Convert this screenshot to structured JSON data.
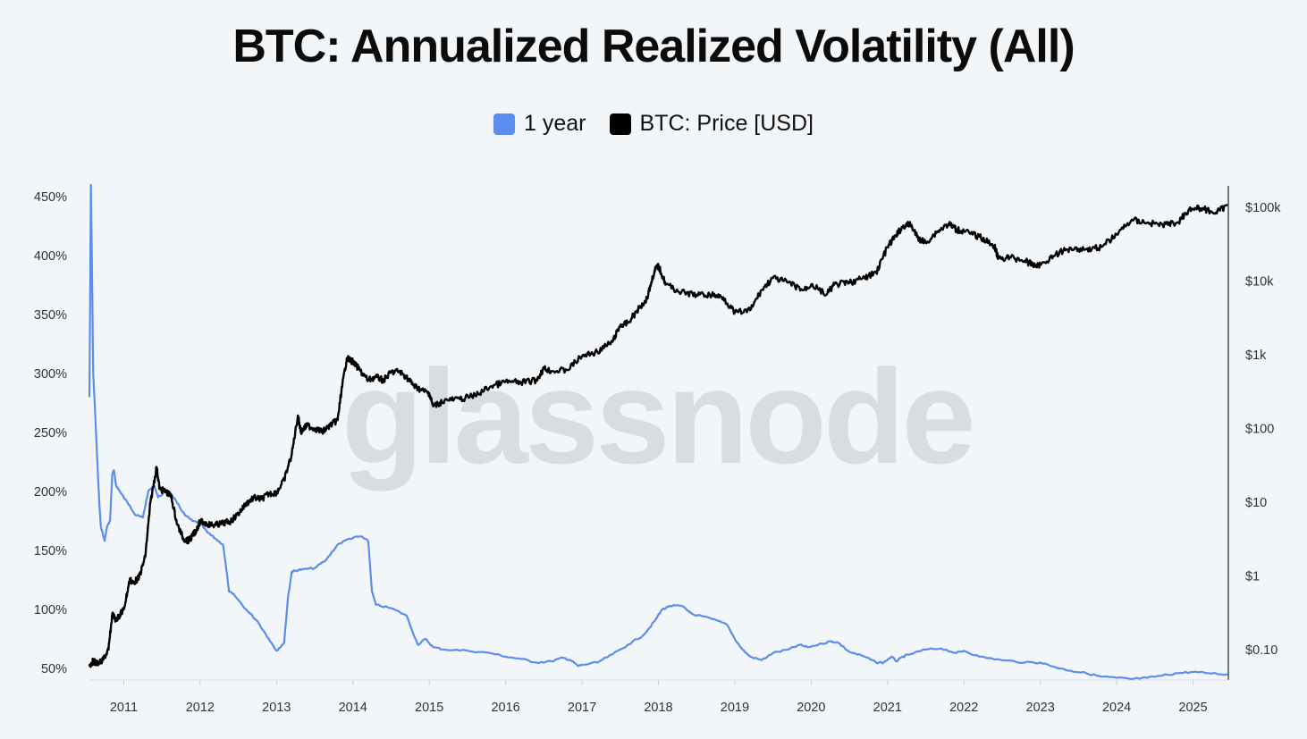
{
  "title": "BTC: Annualized Realized Volatility (All)",
  "legend": [
    {
      "label": "1 year",
      "color": "#5b8def"
    },
    {
      "label": "BTC: Price [USD]",
      "color": "#000000"
    }
  ],
  "watermark": "glassnode",
  "chart_data": {
    "type": "line",
    "title": "BTC: Annualized Realized Volatility (All)",
    "x_ticks": [
      "2011",
      "2012",
      "2013",
      "2014",
      "2015",
      "2016",
      "2017",
      "2018",
      "2019",
      "2020",
      "2021",
      "2022",
      "2023",
      "2024",
      "2025"
    ],
    "xlim": [
      2010.55,
      2025.45
    ],
    "y_left": {
      "ticks": [
        "450%",
        "400%",
        "350%",
        "300%",
        "250%",
        "200%",
        "150%",
        "100%",
        "50%"
      ],
      "range": [
        50,
        450
      ],
      "unit": "%"
    },
    "y_right": {
      "ticks": [
        "$100k",
        "$10k",
        "$1k",
        "$100",
        "$10",
        "$1",
        "$0.10"
      ],
      "scale": "log",
      "range": [
        0.05,
        150000
      ]
    },
    "grid": false,
    "legend_position": "top-center",
    "series": [
      {
        "name": "1 year",
        "axis": "left",
        "color": "#5b8def",
        "x": [
          2010.55,
          2010.57,
          2010.6,
          2010.63,
          2010.65,
          2010.68,
          2010.7,
          2010.75,
          2010.78,
          2010.82,
          2010.85,
          2010.87,
          2010.9,
          2010.95,
          2011.0,
          2011.08,
          2011.15,
          2011.25,
          2011.32,
          2011.4,
          2011.45,
          2011.55,
          2011.62,
          2011.7,
          2011.8,
          2011.9,
          2012.0,
          2012.1,
          2012.2,
          2012.3,
          2012.38,
          2012.45,
          2012.6,
          2012.75,
          2012.9,
          2013.0,
          2013.1,
          2013.15,
          2013.2,
          2013.25,
          2013.35,
          2013.5,
          2013.65,
          2013.8,
          2013.95,
          2014.1,
          2014.2,
          2014.25,
          2014.3,
          2014.5,
          2014.7,
          2014.85,
          2014.95,
          2015.05,
          2015.2,
          2015.5,
          2015.8,
          2016.0,
          2016.2,
          2016.4,
          2016.6,
          2016.75,
          2016.85,
          2016.95,
          2017.0,
          2017.2,
          2017.4,
          2017.6,
          2017.8,
          2017.95,
          2018.05,
          2018.15,
          2018.3,
          2018.45,
          2018.7,
          2018.9,
          2019.0,
          2019.1,
          2019.2,
          2019.35,
          2019.5,
          2019.7,
          2019.85,
          2019.95,
          2020.15,
          2020.25,
          2020.35,
          2020.5,
          2020.7,
          2020.85,
          2020.95,
          2021.05,
          2021.12,
          2021.2,
          2021.3,
          2021.5,
          2021.7,
          2021.9,
          2022.0,
          2022.2,
          2022.5,
          2022.8,
          2023.0,
          2023.2,
          2023.4,
          2023.6,
          2023.8,
          2024.0,
          2024.2,
          2024.4,
          2024.6,
          2024.8,
          2025.0,
          2025.2,
          2025.45
        ],
        "values": [
          280,
          460,
          300,
          260,
          230,
          190,
          170,
          158,
          170,
          175,
          215,
          218,
          205,
          200,
          195,
          188,
          180,
          178,
          200,
          205,
          195,
          200,
          198,
          190,
          180,
          175,
          173,
          165,
          160,
          155,
          115,
          112,
          100,
          90,
          75,
          65,
          72,
          110,
          132,
          133,
          134,
          135,
          142,
          155,
          160,
          162,
          158,
          115,
          104,
          101,
          95,
          70,
          75,
          68,
          66,
          65,
          63,
          60,
          58,
          55,
          56,
          59,
          57,
          52,
          53,
          55,
          62,
          70,
          78,
          90,
          100,
          103,
          103,
          96,
          92,
          87,
          75,
          66,
          60,
          57,
          63,
          66,
          70,
          68,
          71,
          73,
          72,
          64,
          60,
          55,
          55,
          60,
          56,
          60,
          62,
          66,
          67,
          63,
          65,
          60,
          57,
          55,
          55,
          51,
          48,
          46,
          43,
          42,
          41,
          42,
          44,
          46,
          47,
          46,
          45
        ]
      },
      {
        "name": "BTC: Price [USD]",
        "axis": "right",
        "color": "#000000",
        "x": [
          2010.55,
          2010.6,
          2010.65,
          2010.72,
          2010.8,
          2010.85,
          2010.9,
          2010.95,
          2011.0,
          2011.08,
          2011.12,
          2011.2,
          2011.28,
          2011.35,
          2011.43,
          2011.47,
          2011.55,
          2011.62,
          2011.7,
          2011.78,
          2011.85,
          2011.9,
          2011.95,
          2012.0,
          2012.1,
          2012.2,
          2012.3,
          2012.4,
          2012.5,
          2012.6,
          2012.7,
          2012.8,
          2012.9,
          2013.0,
          2013.1,
          2013.2,
          2013.28,
          2013.32,
          2013.4,
          2013.5,
          2013.6,
          2013.7,
          2013.8,
          2013.85,
          2013.92,
          2014.0,
          2014.1,
          2014.2,
          2014.3,
          2014.4,
          2014.5,
          2014.6,
          2014.7,
          2014.8,
          2014.9,
          2015.0,
          2015.05,
          2015.2,
          2015.4,
          2015.6,
          2015.8,
          2016.0,
          2016.2,
          2016.4,
          2016.5,
          2016.6,
          2016.8,
          2017.0,
          2017.2,
          2017.4,
          2017.5,
          2017.6,
          2017.75,
          2017.85,
          2017.95,
          2018.0,
          2018.1,
          2018.3,
          2018.5,
          2018.7,
          2018.85,
          2019.0,
          2019.2,
          2019.35,
          2019.5,
          2019.7,
          2019.9,
          2020.0,
          2020.2,
          2020.3,
          2020.5,
          2020.7,
          2020.85,
          2021.0,
          2021.1,
          2021.2,
          2021.3,
          2021.4,
          2021.5,
          2021.65,
          2021.8,
          2021.9,
          2022.0,
          2022.2,
          2022.4,
          2022.45,
          2022.6,
          2022.8,
          2022.9,
          2023.0,
          2023.2,
          2023.4,
          2023.6,
          2023.8,
          2024.0,
          2024.2,
          2024.4,
          2024.6,
          2024.8,
          2024.95,
          2025.1,
          2025.3,
          2025.45
        ],
        "values": [
          0.06,
          0.07,
          0.065,
          0.07,
          0.1,
          0.3,
          0.25,
          0.3,
          0.35,
          0.9,
          0.8,
          0.95,
          1.8,
          10,
          30,
          15,
          14,
          12,
          5,
          3.2,
          3.0,
          3.5,
          4.2,
          5.5,
          5.0,
          4.9,
          5.2,
          5.5,
          7.0,
          9.5,
          11.5,
          11.0,
          13.0,
          13.5,
          20,
          45,
          150,
          90,
          110,
          100,
          90,
          110,
          130,
          320,
          900,
          800,
          600,
          450,
          500,
          450,
          580,
          600,
          500,
          380,
          330,
          300,
          200,
          240,
          250,
          280,
          370,
          430,
          420,
          450,
          650,
          600,
          620,
          960,
          1100,
          1500,
          2500,
          2700,
          4300,
          5800,
          14000,
          16000,
          9000,
          7000,
          6500,
          6500,
          6000,
          3700,
          4000,
          7500,
          11000,
          9500,
          7500,
          9000,
          6500,
          8900,
          9500,
          11000,
          13000,
          29000,
          40000,
          55000,
          59000,
          38000,
          33000,
          47000,
          60000,
          50000,
          47000,
          40000,
          30000,
          20000,
          21000,
          19000,
          16500,
          16500,
          23000,
          28000,
          27000,
          29000,
          43000,
          68000,
          62000,
          58000,
          62000,
          95000,
          97000,
          85000,
          105000
        ]
      }
    ]
  }
}
